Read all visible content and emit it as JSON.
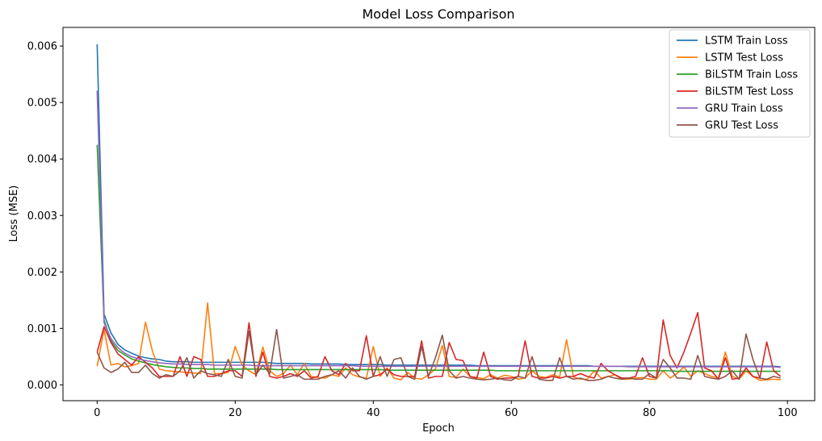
{
  "chart_data": {
    "type": "line",
    "title": "Model Loss Comparison",
    "xlabel": "Epoch",
    "ylabel": "Loss (MSE)",
    "xlim": [
      -4.95,
      103.95
    ],
    "ylim": [
      -0.00028,
      0.00633
    ],
    "xticks": [
      0,
      20,
      40,
      60,
      80,
      100
    ],
    "yticks": [
      0.0,
      0.001,
      0.002,
      0.003,
      0.004,
      0.005,
      0.006
    ],
    "xtick_labels": [
      "0",
      "20",
      "40",
      "60",
      "80",
      "100"
    ],
    "ytick_labels": [
      "0.000",
      "0.001",
      "0.002",
      "0.003",
      "0.004",
      "0.005",
      "0.006"
    ],
    "grid": false,
    "legend_position": "top-right",
    "series": [
      {
        "name": "LSTM Train Loss",
        "color": "#1f77b4",
        "values": [
          0.00603,
          0.00125,
          0.00092,
          0.00072,
          0.00062,
          0.00056,
          0.00051,
          0.00048,
          0.00046,
          0.00045,
          0.00042,
          0.00041,
          0.00041,
          0.00041,
          0.0004,
          0.0004,
          0.0004,
          0.0004,
          0.0004,
          0.0004,
          0.0004,
          0.0004,
          0.0004,
          0.0004,
          0.0004,
          0.00039,
          0.00038,
          0.00038,
          0.00038,
          0.00038,
          0.00038,
          0.00037,
          0.00037,
          0.00037,
          0.00037,
          0.00037,
          0.00036,
          0.00036,
          0.00036,
          0.00036,
          0.00036,
          0.00036,
          0.00035,
          0.00035,
          0.00035,
          0.00035,
          0.00035,
          0.00035,
          0.00035,
          0.00035,
          0.00035,
          0.00035,
          0.00035,
          0.00035,
          0.00035,
          0.00034,
          0.00034,
          0.00034,
          0.00034,
          0.00034,
          0.00034,
          0.00034,
          0.00034,
          0.00034,
          0.00034,
          0.00034,
          0.00034,
          0.00034,
          0.00034,
          0.00034,
          0.00034,
          0.00034,
          0.00033,
          0.00033,
          0.00033,
          0.00033,
          0.00033,
          0.00033,
          0.00033,
          0.00033,
          0.00033,
          0.00033,
          0.00033,
          0.00033,
          0.00033,
          0.00033,
          0.00033,
          0.00033,
          0.00033,
          0.00033,
          0.00033,
          0.00033,
          0.00033,
          0.00033,
          0.00033,
          0.00033,
          0.00033,
          0.00033,
          0.00033,
          0.00032
        ]
      },
      {
        "name": "LSTM Test Loss",
        "color": "#ff7f0e",
        "values": [
          0.00033,
          0.00098,
          0.00035,
          0.00038,
          0.00032,
          0.00034,
          0.00038,
          0.00111,
          0.0006,
          0.00028,
          0.00025,
          0.00024,
          0.00023,
          0.00022,
          0.00021,
          0.0002,
          0.00145,
          0.0002,
          0.0002,
          0.00022,
          0.00068,
          0.00035,
          0.00025,
          0.00018,
          0.00067,
          0.00025,
          0.00015,
          0.0002,
          0.00035,
          0.00018,
          0.00038,
          0.00015,
          0.00013,
          0.00012,
          0.00018,
          0.00015,
          0.0003,
          0.00018,
          0.00014,
          0.00012,
          0.00068,
          0.00015,
          0.0003,
          0.00012,
          9e-05,
          0.00022,
          0.00012,
          0.0001,
          0.00018,
          0.00028,
          0.0007,
          0.00015,
          0.00013,
          0.00028,
          0.00015,
          0.00013,
          0.00011,
          0.00018,
          0.00012,
          0.00017,
          0.00015,
          0.0001,
          0.00012,
          0.00025,
          0.00015,
          0.00013,
          0.00018,
          0.00014,
          0.0008,
          0.00014,
          0.0001,
          0.0001,
          0.00025,
          0.00012,
          0.00015,
          0.00018,
          0.0001,
          0.0001,
          0.00012,
          0.00013,
          0.0001,
          0.0001,
          0.00025,
          0.00012,
          0.0002,
          0.00032,
          0.00015,
          0.00025,
          0.0002,
          0.00015,
          0.00012,
          0.00058,
          0.00015,
          0.0001,
          0.00025,
          0.00015,
          8e-05,
          9e-05,
          0.0001,
          9e-05
        ]
      },
      {
        "name": "BiLSTM Train Loss",
        "color": "#2ca02c",
        "values": [
          0.00425,
          0.00115,
          0.00078,
          0.00061,
          0.00053,
          0.00046,
          0.00042,
          0.00039,
          0.00036,
          0.00034,
          0.00032,
          0.00031,
          0.0003,
          0.0003,
          0.00029,
          0.00029,
          0.00028,
          0.00028,
          0.00028,
          0.00028,
          0.00028,
          0.00028,
          0.00028,
          0.00028,
          0.00028,
          0.00028,
          0.00027,
          0.00027,
          0.00027,
          0.00027,
          0.00027,
          0.00027,
          0.00027,
          0.00027,
          0.00027,
          0.00027,
          0.00027,
          0.00027,
          0.00027,
          0.00027,
          0.00027,
          0.00027,
          0.00026,
          0.00026,
          0.00026,
          0.00026,
          0.00026,
          0.00026,
          0.00026,
          0.00026,
          0.00026,
          0.00026,
          0.00026,
          0.00026,
          0.00026,
          0.00026,
          0.00026,
          0.00026,
          0.00025,
          0.00025,
          0.00025,
          0.00025,
          0.00025,
          0.00025,
          0.00025,
          0.00025,
          0.00025,
          0.00025,
          0.00025,
          0.00025,
          0.00025,
          0.00025,
          0.00025,
          0.00025,
          0.00025,
          0.00025,
          0.00025,
          0.00025,
          0.00025,
          0.00025,
          0.00025,
          0.00025,
          0.00025,
          0.00025,
          0.00024,
          0.00024,
          0.00024,
          0.00024,
          0.00024,
          0.00024,
          0.00024,
          0.00024,
          0.00024,
          0.00024,
          0.00024,
          0.00024,
          0.00024,
          0.00024,
          0.00024,
          0.00024
        ]
      },
      {
        "name": "BiLSTM Test Loss",
        "color": "#d62728",
        "values": [
          0.00058,
          0.00103,
          0.00075,
          0.00055,
          0.00045,
          0.00035,
          0.0005,
          0.0004,
          0.0003,
          0.00015,
          0.00015,
          0.00015,
          0.0005,
          0.00015,
          0.0005,
          0.00045,
          0.00015,
          0.00015,
          0.0002,
          0.00025,
          0.00025,
          0.00015,
          0.0011,
          0.00015,
          0.00058,
          0.00015,
          0.00012,
          0.00015,
          0.0002,
          0.00015,
          0.00025,
          0.00012,
          0.00015,
          0.0005,
          0.00025,
          0.00018,
          0.00038,
          0.00025,
          0.00025,
          0.00087,
          0.00015,
          0.00018,
          0.00028,
          0.00018,
          0.00015,
          0.00015,
          0.00015,
          0.00078,
          0.00012,
          0.00015,
          0.00015,
          0.00075,
          0.00045,
          0.00043,
          0.00015,
          0.00012,
          0.00058,
          0.00015,
          0.0001,
          0.00012,
          0.00012,
          0.00015,
          0.00078,
          0.00015,
          0.00012,
          0.00012,
          0.00015,
          0.00012,
          0.00015,
          0.00015,
          0.0002,
          0.00015,
          0.00012,
          0.00038,
          0.00025,
          0.00018,
          0.00012,
          0.00012,
          0.00015,
          0.00048,
          0.00015,
          0.00012,
          0.00115,
          0.00052,
          0.0003,
          0.00058,
          0.00092,
          0.00128,
          0.0003,
          0.00025,
          0.0001,
          0.00048,
          0.0001,
          0.00012,
          0.0003,
          0.00015,
          0.00012,
          0.00076,
          0.00025,
          0.00015
        ]
      },
      {
        "name": "GRU Train Loss",
        "color": "#9467bd",
        "values": [
          0.00521,
          0.0011,
          0.00082,
          0.00066,
          0.00056,
          0.0005,
          0.00046,
          0.00043,
          0.00041,
          0.00039,
          0.00038,
          0.00037,
          0.00037,
          0.00036,
          0.00036,
          0.00036,
          0.00036,
          0.00035,
          0.00035,
          0.00035,
          0.00035,
          0.00035,
          0.00035,
          0.00034,
          0.00034,
          0.00034,
          0.00034,
          0.00034,
          0.00034,
          0.00034,
          0.00034,
          0.00034,
          0.00034,
          0.00034,
          0.00034,
          0.00034,
          0.00034,
          0.00034,
          0.00033,
          0.00033,
          0.00033,
          0.00033,
          0.00033,
          0.00033,
          0.00033,
          0.00033,
          0.00033,
          0.00033,
          0.00033,
          0.00033,
          0.00033,
          0.00033,
          0.00033,
          0.00033,
          0.00033,
          0.00033,
          0.00033,
          0.00033,
          0.00033,
          0.00033,
          0.00033,
          0.00033,
          0.00033,
          0.00033,
          0.00033,
          0.00033,
          0.00033,
          0.00033,
          0.00033,
          0.00033,
          0.00033,
          0.00033,
          0.00033,
          0.00033,
          0.00033,
          0.00033,
          0.00033,
          0.00032,
          0.00032,
          0.00032,
          0.00032,
          0.00032,
          0.00032,
          0.00032,
          0.00032,
          0.00032,
          0.00032,
          0.00032,
          0.00032,
          0.00032,
          0.00032,
          0.00032,
          0.00032,
          0.00032,
          0.00032,
          0.00032,
          0.00032,
          0.00032,
          0.00032,
          0.00031
        ]
      },
      {
        "name": "GRU Test Loss",
        "color": "#8c564b",
        "values": [
          0.00058,
          0.0003,
          0.00022,
          0.00028,
          0.0004,
          0.00022,
          0.00022,
          0.00035,
          0.0002,
          0.00012,
          0.00018,
          0.00015,
          0.00025,
          0.00048,
          0.00012,
          0.00025,
          0.0002,
          0.00018,
          0.00015,
          0.00045,
          0.00015,
          0.00012,
          0.00095,
          0.00018,
          0.00035,
          0.0002,
          0.00098,
          0.00012,
          0.00015,
          0.00018,
          0.0001,
          0.0001,
          0.0001,
          0.00015,
          0.00018,
          0.00025,
          0.00012,
          0.0003,
          0.00015,
          0.0001,
          0.00015,
          0.0005,
          0.00015,
          0.00045,
          0.00048,
          0.00015,
          0.0001,
          0.00068,
          0.00015,
          0.00048,
          0.00088,
          0.00025,
          0.00012,
          0.00015,
          0.00012,
          0.0001,
          9e-05,
          0.0001,
          0.00012,
          9e-05,
          8e-05,
          0.00015,
          0.00012,
          0.0005,
          0.0001,
          8e-05,
          8e-05,
          0.00048,
          0.00015,
          0.0001,
          0.00012,
          8e-05,
          8e-05,
          0.0001,
          0.00015,
          0.00012,
          0.0001,
          0.00012,
          0.0001,
          0.0001,
          0.0002,
          0.00012,
          0.00045,
          0.0003,
          0.00012,
          0.00012,
          0.0001,
          0.00052,
          0.00015,
          0.00012,
          0.0001,
          0.00015,
          0.00025,
          0.0001,
          0.0009,
          0.00045,
          0.00012,
          0.0001,
          0.00015,
          0.00012
        ]
      }
    ]
  }
}
